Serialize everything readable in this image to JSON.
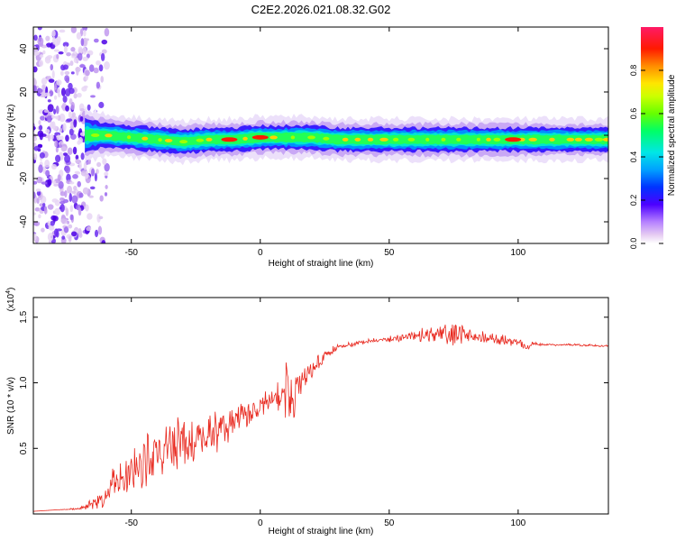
{
  "title": "C2E2.2026.021.08.32.G02",
  "chart_data": [
    {
      "type": "heatmap",
      "xlabel": "Height of straight line (km)",
      "ylabel": "Frequency (Hz)",
      "xlim": [
        -88,
        135
      ],
      "ylim": [
        -50,
        50
      ],
      "x_ticks": [
        -50,
        0,
        50,
        100
      ],
      "y_ticks": [
        -40,
        -20,
        0,
        20,
        40
      ],
      "colorbar": {
        "label": "Normalized spectral amplitude",
        "range": [
          0.0,
          1.0
        ],
        "ticks": [
          0.0,
          0.2,
          0.4,
          0.6,
          0.8
        ],
        "tick_labels": [
          "0.0",
          "0.2",
          "0.4",
          "0.6",
          "0.8"
        ]
      },
      "noise_region_x": [
        -88,
        -63
      ],
      "ridge": {
        "x": [
          -68,
          -60,
          -50,
          -40,
          -30,
          -20,
          -10,
          0,
          10,
          20,
          30,
          40,
          50,
          60,
          70,
          80,
          90,
          100,
          110,
          120,
          135
        ],
        "center": [
          0,
          0,
          -1,
          -2,
          -3,
          -2,
          -2,
          -1,
          -1,
          -1,
          -2,
          -2,
          -2,
          -2,
          -2,
          -2,
          -2,
          -2,
          -2,
          -2,
          -2
        ],
        "halfwidth": [
          4,
          3,
          3,
          3,
          3,
          3,
          3,
          3,
          3,
          3,
          3,
          3,
          3,
          3,
          3,
          3,
          3,
          3,
          3,
          3,
          3
        ],
        "peak_x": [
          -12,
          0,
          98
        ]
      }
    },
    {
      "type": "line",
      "series_name": "SNR",
      "color": "#e8281e",
      "xlabel": "Height of straight line (km)",
      "ylabel": "SNR (10 * v/v)",
      "y_multiplier": "(x10^4)",
      "y_multiplier_base": "(x10",
      "y_multiplier_exp": "4",
      "y_multiplier_close": ")",
      "xlim": [
        -88,
        135
      ],
      "ylim": [
        0,
        1.65
      ],
      "x_ticks": [
        -50,
        0,
        50,
        100
      ],
      "y_ticks": [
        0.5,
        1.0,
        1.5
      ],
      "y_tick_labels": [
        "0.5",
        "1.0",
        "1.5"
      ],
      "x": [
        -88,
        -80,
        -70,
        -62,
        -58,
        -55,
        -50,
        -45,
        -40,
        -35,
        -30,
        -25,
        -20,
        -15,
        -10,
        -5,
        0,
        5,
        8,
        10,
        12,
        15,
        20,
        25,
        30,
        40,
        50,
        60,
        70,
        75,
        80,
        90,
        100,
        103,
        106,
        110,
        120,
        135
      ],
      "y": [
        0.02,
        0.03,
        0.04,
        0.1,
        0.2,
        0.25,
        0.32,
        0.4,
        0.45,
        0.5,
        0.55,
        0.55,
        0.6,
        0.65,
        0.7,
        0.76,
        0.82,
        0.88,
        0.92,
        1.0,
        0.85,
        1.0,
        1.1,
        1.2,
        1.27,
        1.31,
        1.33,
        1.36,
        1.37,
        1.38,
        1.36,
        1.33,
        1.32,
        1.26,
        1.3,
        1.29,
        1.29,
        1.28
      ],
      "noise_amplitude": [
        0.0,
        0.0,
        0.01,
        0.08,
        0.14,
        0.18,
        0.2,
        0.24,
        0.26,
        0.26,
        0.24,
        0.22,
        0.2,
        0.18,
        0.14,
        0.12,
        0.1,
        0.1,
        0.14,
        0.3,
        0.3,
        0.12,
        0.1,
        0.05,
        0.03,
        0.02,
        0.03,
        0.05,
        0.1,
        0.12,
        0.06,
        0.05,
        0.04,
        0.03,
        0.02,
        0.01,
        0.01,
        0.01
      ]
    }
  ]
}
